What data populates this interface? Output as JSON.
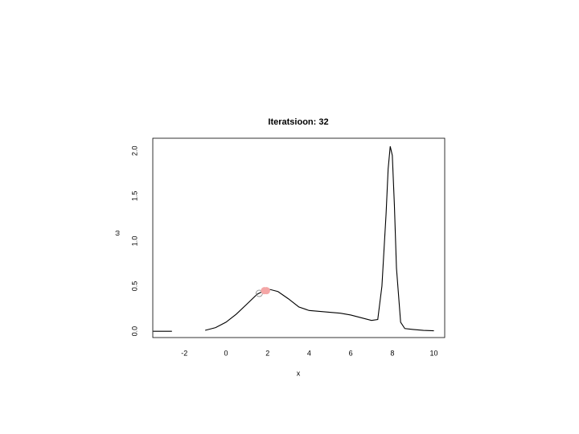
{
  "chart_data": {
    "type": "line",
    "title": "Iteratsioon: 32",
    "x_label": "x",
    "y_label": "ω",
    "x": [
      -3.5,
      -3,
      -2.6,
      null,
      -1,
      -0.5,
      0,
      0.5,
      1,
      1.5,
      2,
      2.5,
      3,
      3.5,
      4,
      4.5,
      5,
      5.5,
      6,
      6.5,
      7,
      7.3,
      7.5,
      7.7,
      7.8,
      7.9,
      8,
      8.1,
      8.2,
      8.4,
      8.6,
      9,
      9.5,
      10
    ],
    "series": [
      {
        "color": "#000000",
        "values": [
          0,
          0,
          0,
          null,
          0.01,
          0.04,
          0.1,
          0.19,
          0.3,
          0.41,
          0.47,
          0.44,
          0.36,
          0.27,
          0.23,
          0.22,
          0.21,
          0.2,
          0.18,
          0.15,
          0.12,
          0.13,
          0.5,
          1.3,
          1.8,
          2.05,
          1.95,
          1.4,
          0.7,
          0.1,
          0.03,
          0.02,
          0.01,
          0.005
        ]
      }
    ],
    "points": [
      {
        "x": 1.6,
        "y": 0.42,
        "color": "#999999"
      },
      {
        "x": 1.85,
        "y": 0.45,
        "color": "#f4a6a6"
      },
      {
        "x": 1.95,
        "y": 0.45,
        "color": "#f4a6a6"
      }
    ],
    "xlim": [
      -3.52,
      10.52
    ],
    "ylim": [
      -0.07,
      2.14
    ],
    "xticks": [
      -2,
      0,
      2,
      4,
      6,
      8,
      10
    ],
    "yticks": [
      {
        "value": 0,
        "label": "0.0"
      },
      {
        "value": 0.5,
        "label": "0.5"
      },
      {
        "value": 1,
        "label": "1.0"
      },
      {
        "value": 1.5,
        "label": "1.5"
      },
      {
        "value": 2,
        "label": "2.0"
      }
    ]
  }
}
